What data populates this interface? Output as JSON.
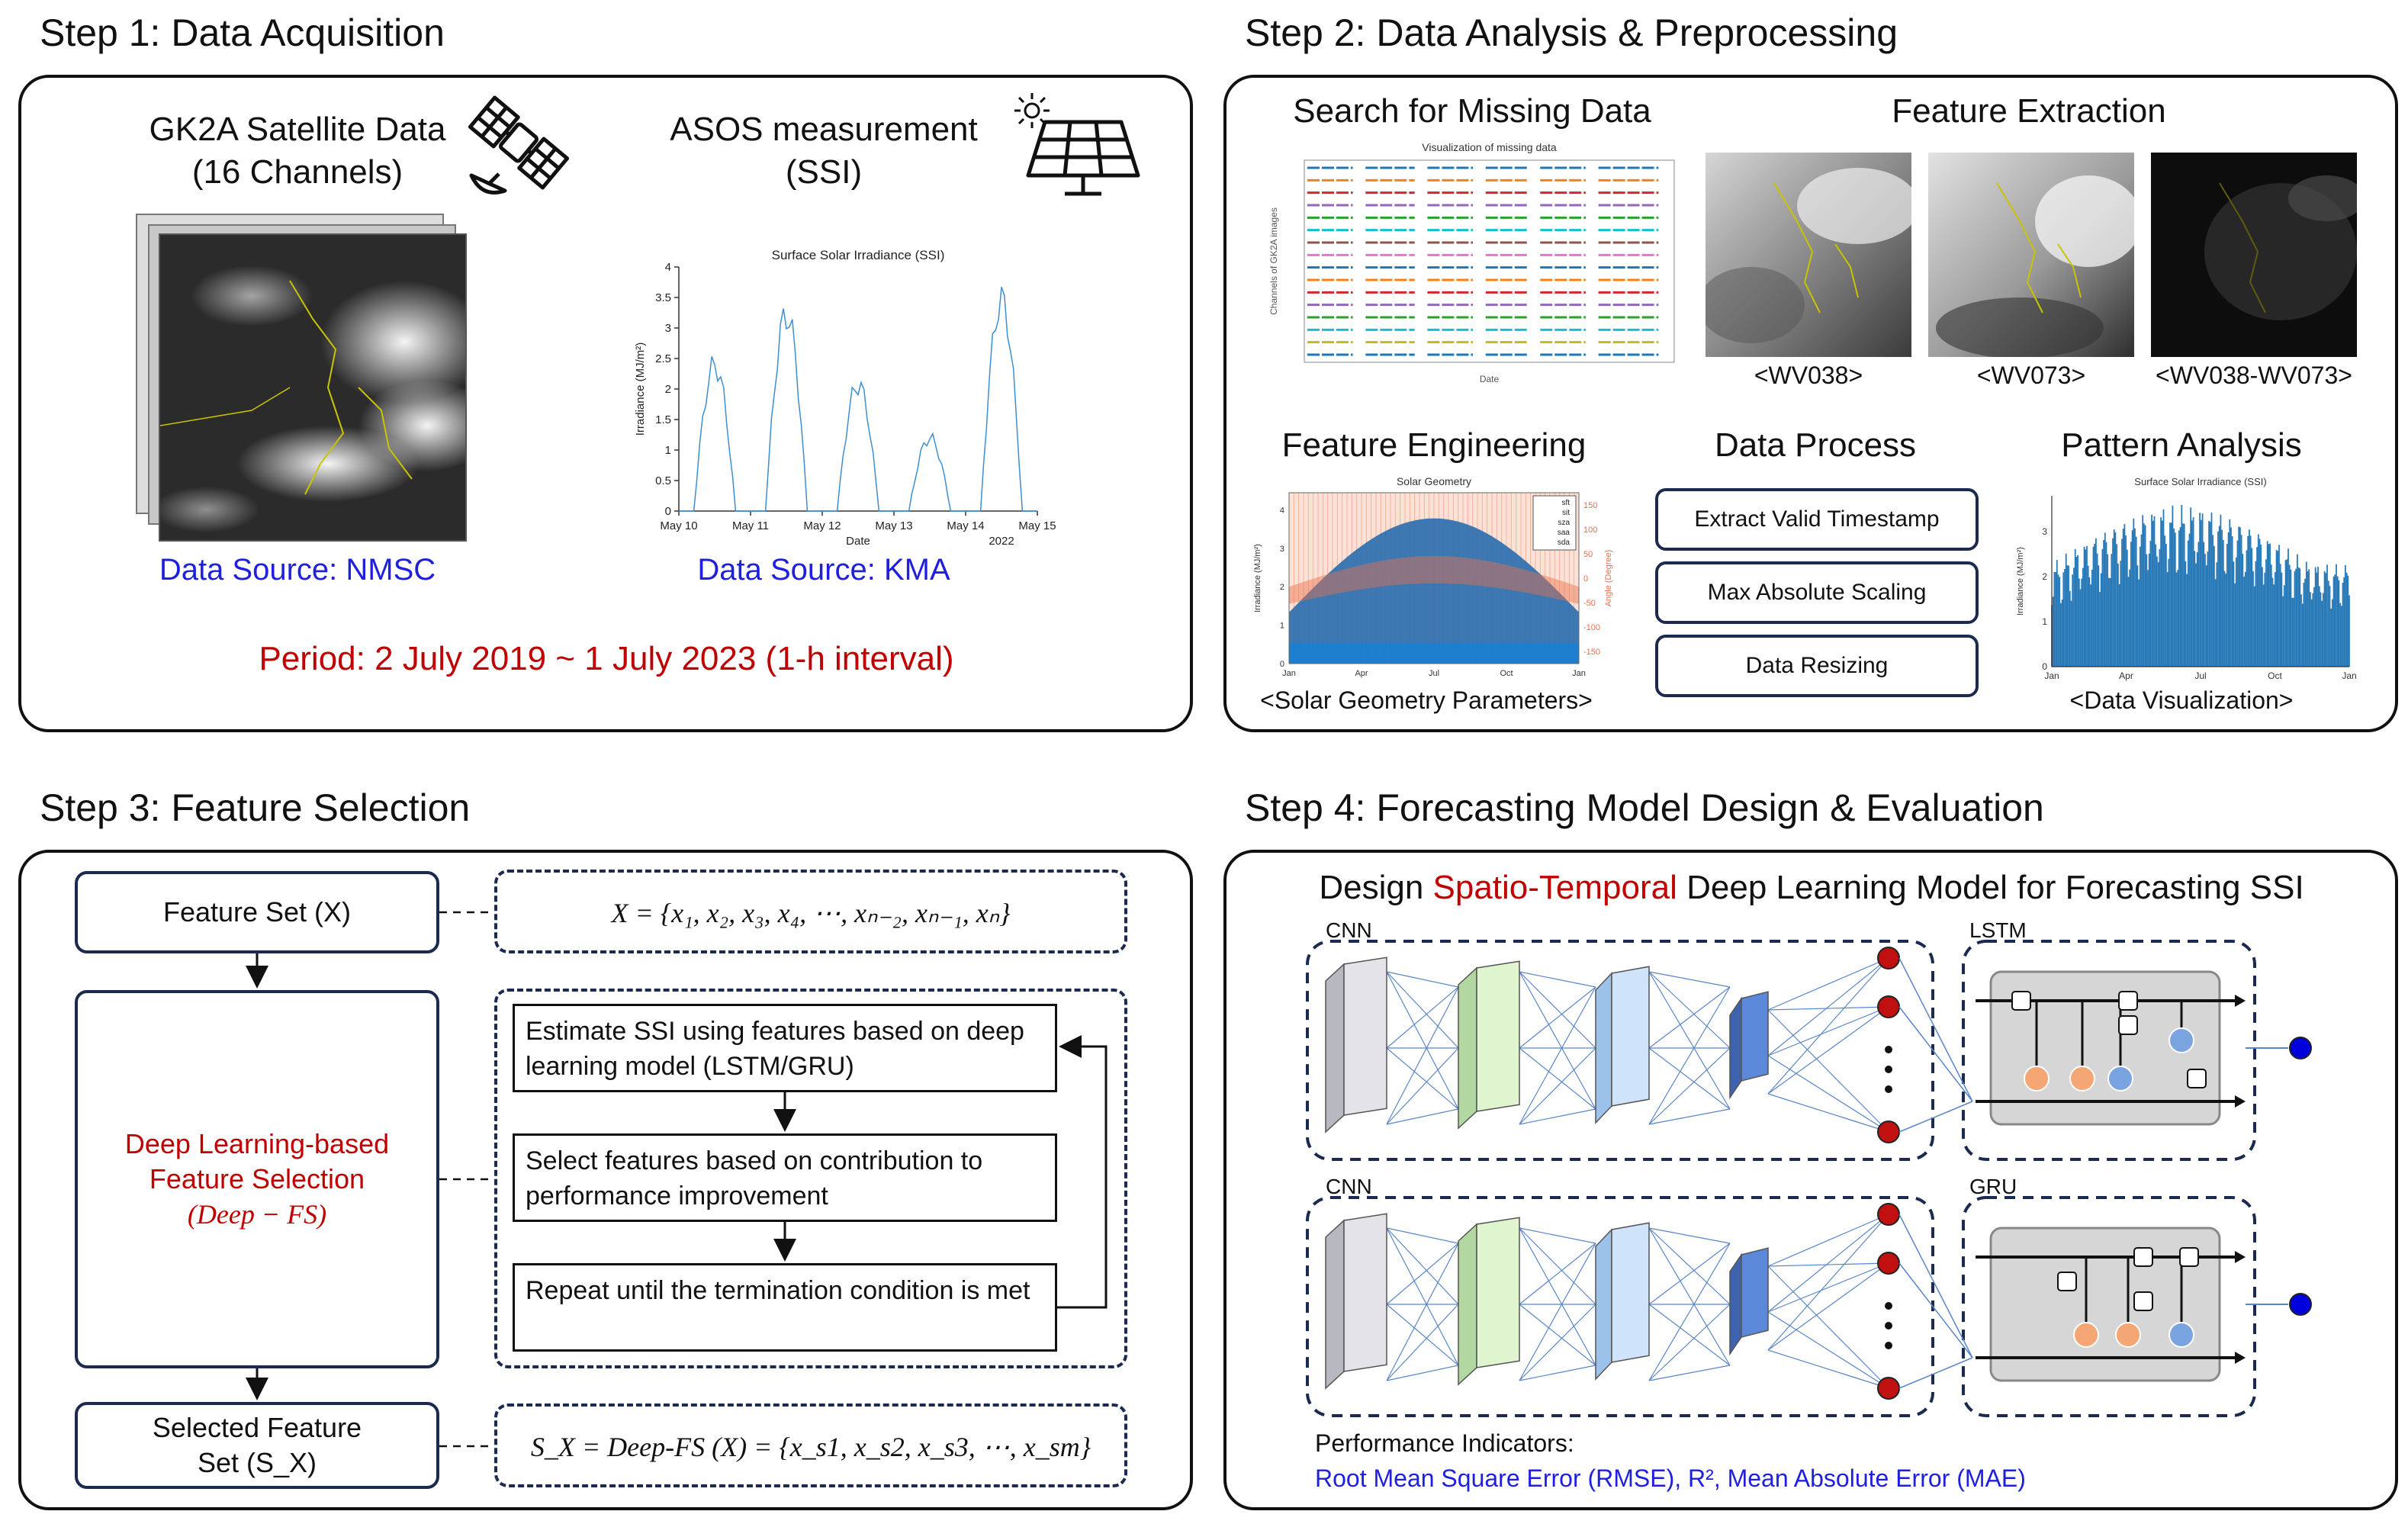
{
  "step1": {
    "title": "Step 1: Data Acquisition",
    "gk2a_title": "GK2A Satellite Data",
    "gk2a_sub": "(16 Channels)",
    "gk2a_source": "Data Source: NMSC",
    "asos_title": "ASOS measurement",
    "asos_sub": "(SSI)",
    "asos_source": "Data Source: KMA",
    "period": "Period: 2 July 2019 ~ 1 July 2023 (1-h interval)",
    "icons": [
      "satellite-icon",
      "solar-panel-icon",
      "sun-icon"
    ]
  },
  "step2": {
    "title": "Step 2: Data Analysis & Preprocessing",
    "missing_title": "Search for Missing Data",
    "missing_chart_title": "Visualization of missing data",
    "missing_xlabel": "Date",
    "missing_ylabel": "Channels of GK2A images",
    "feature_extraction_title": "Feature Extraction",
    "images": [
      "<WV038>",
      "<WV073>",
      "<WV038-WV073>"
    ],
    "feature_engineering_title": "Feature Engineering",
    "solar_geometry_chart_title": "Solar Geometry",
    "solar_geometry_caption": "<Solar Geometry Parameters>",
    "data_process_title": "Data Process",
    "process_steps": [
      "Extract Valid Timestamp",
      "Max Absolute Scaling",
      "Data Resizing"
    ],
    "pattern_title": "Pattern Analysis",
    "pattern_chart_title": "Surface Solar Irradiance (SSI)",
    "pattern_caption": "<Data Visualization>",
    "month_ticks": [
      "Jan",
      "Apr",
      "Jul",
      "Oct",
      "Jan"
    ]
  },
  "step3": {
    "title": "Step 3: Feature Selection",
    "feature_set": "Feature Set (X)",
    "feature_set_formula": "X = {x₁, x₂, x₃, x₄, ⋯, xₙ₋₂, xₙ₋₁, xₙ}",
    "dl_fs_line1": "Deep Learning-based",
    "dl_fs_line2": "Feature Selection",
    "dl_fs_line3": "(Deep − FS)",
    "flow_steps": [
      "Estimate SSI using features based on deep learning model (LSTM/GRU)",
      "Select features based on contribution to performance improvement",
      "Repeat until the termination condition is met"
    ],
    "selected_line1": "Selected Feature",
    "selected_line2": "Set (S_X)",
    "selected_formula": "S_X = Deep-FS (X) = {x_s1, x_s2, x_s3, ⋯, x_sm}"
  },
  "step4": {
    "title": "Step 4: Forecasting Model Design & Evaluation",
    "design_pre": "Design ",
    "design_highlight": "Spatio-Temporal",
    "design_post": " Deep Learning Model for Forecasting SSI",
    "labels": {
      "cnn1": "CNN",
      "lstm": "LSTM",
      "cnn2": "CNN",
      "gru": "GRU"
    },
    "perf_title": "Performance Indicators:",
    "perf_metrics": "Root Mean Square Error (RMSE), R², Mean Absolute Error (MAE)"
  },
  "colors": {
    "accent_red": "#c00000",
    "source_blue": "#1f1fe0",
    "box_navy": "#1c2a50",
    "chart_blue": "#2a7ab8",
    "geometry_orange": "#e8704a"
  },
  "chart_data": [
    {
      "type": "line",
      "title": "Surface Solar Irradiance (SSI)",
      "xlabel": "Date",
      "ylabel": "Irradiance (MJ/m²)",
      "x_ticks": [
        "May 10",
        "May 11",
        "May 12",
        "May 13",
        "May 14",
        "May 15"
      ],
      "x_year_label": "2022",
      "y_ticks": [
        "0",
        "0.5",
        "1",
        "1.5",
        "2",
        "2.5",
        "3",
        "3.5",
        "4"
      ],
      "ylim": [
        0,
        4
      ],
      "daily_peaks": [
        {
          "day": "May 10",
          "value": 2.6
        },
        {
          "day": "May 11",
          "value": 3.5
        },
        {
          "day": "May 12",
          "value": 2.25
        },
        {
          "day": "May 13",
          "value": 1.3
        },
        {
          "day": "May 14",
          "value": 3.75
        }
      ]
    },
    {
      "type": "bar",
      "title": "Surface Solar Irradiance (SSI)",
      "ylabel": "Irradiance (MJ/m²)",
      "x_ticks": [
        "Jan",
        "Apr",
        "Jul",
        "Oct",
        "Jan"
      ],
      "y_ticks": [
        "0",
        "1",
        "2",
        "3"
      ],
      "ylim": [
        0,
        3.8
      ]
    },
    {
      "type": "area",
      "title": "Solar Geometry",
      "ylabel_left": "Irradiance (MJ/m²)",
      "ylabel_right": "Angle (Degree)",
      "x_ticks": [
        "Jan",
        "Apr",
        "Jul",
        "Oct",
        "Jan"
      ],
      "y_ticks_left": [
        "0",
        "1",
        "2",
        "3",
        "4"
      ],
      "y_ticks_right": [
        "-150",
        "-100",
        "-50",
        "0",
        "50",
        "100",
        "150"
      ],
      "legend": [
        "sft",
        "sit",
        "sza",
        "saa",
        "sda"
      ]
    }
  ]
}
